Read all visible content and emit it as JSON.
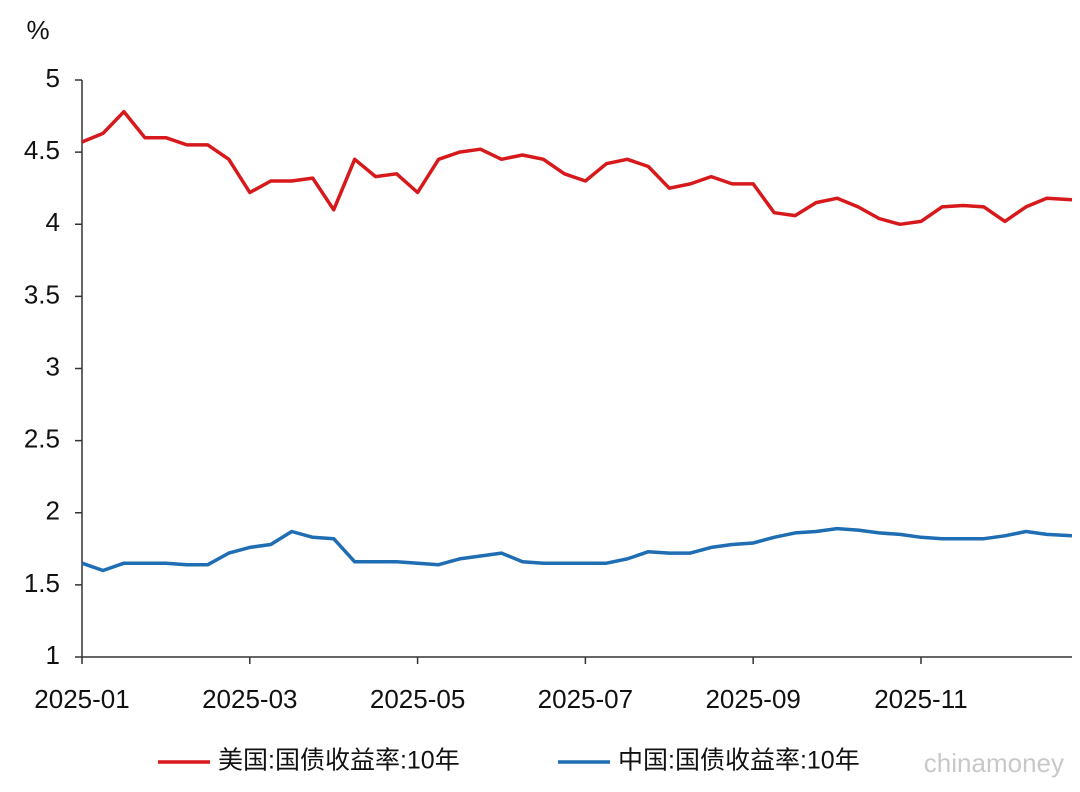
{
  "chart_data": {
    "type": "line",
    "y_label": "%",
    "x": [
      0,
      0.25,
      0.5,
      0.75,
      1,
      1.25,
      1.5,
      1.75,
      2,
      2.25,
      2.5,
      2.75,
      3,
      3.25,
      3.5,
      3.75,
      4,
      4.25,
      4.5,
      4.75,
      5,
      5.25,
      5.5,
      5.75,
      6,
      6.25,
      6.5,
      6.75,
      7,
      7.25,
      7.5,
      7.75,
      8,
      8.25,
      8.5,
      8.75,
      9,
      9.25,
      9.5,
      9.75,
      10,
      10.25,
      10.5,
      10.75,
      11,
      11.25,
      11.5,
      11.8
    ],
    "series": [
      {
        "name": "美国:国债收益率:10年",
        "color": "#d7191c",
        "values": [
          4.57,
          4.63,
          4.78,
          4.6,
          4.6,
          4.55,
          4.55,
          4.45,
          4.22,
          4.3,
          4.3,
          4.32,
          4.1,
          4.45,
          4.33,
          4.35,
          4.22,
          4.45,
          4.5,
          4.52,
          4.45,
          4.48,
          4.45,
          4.35,
          4.3,
          4.42,
          4.45,
          4.4,
          4.25,
          4.28,
          4.33,
          4.28,
          4.28,
          4.08,
          4.06,
          4.15,
          4.18,
          4.12,
          4.04,
          4.0,
          4.02,
          4.12,
          4.13,
          4.12,
          4.02,
          4.12,
          4.18,
          4.17
        ]
      },
      {
        "name": "中国:国债收益率:10年",
        "color": "#1f6db3",
        "values": [
          1.65,
          1.6,
          1.65,
          1.65,
          1.65,
          1.64,
          1.64,
          1.72,
          1.76,
          1.78,
          1.87,
          1.83,
          1.82,
          1.66,
          1.66,
          1.66,
          1.65,
          1.64,
          1.68,
          1.7,
          1.72,
          1.66,
          1.65,
          1.65,
          1.65,
          1.65,
          1.68,
          1.73,
          1.72,
          1.72,
          1.76,
          1.78,
          1.79,
          1.83,
          1.86,
          1.87,
          1.89,
          1.88,
          1.86,
          1.85,
          1.83,
          1.82,
          1.82,
          1.82,
          1.84,
          1.87,
          1.85,
          1.84
        ]
      }
    ],
    "xlim": [
      0,
      11.8
    ],
    "xticks": [
      {
        "value": 0,
        "label": "2025-01"
      },
      {
        "value": 2,
        "label": "2025-03"
      },
      {
        "value": 4,
        "label": "2025-05"
      },
      {
        "value": 6,
        "label": "2025-07"
      },
      {
        "value": 8,
        "label": "2025-09"
      },
      {
        "value": 10,
        "label": "2025-11"
      }
    ],
    "ylim": [
      1,
      5
    ],
    "yticks": [
      1,
      1.5,
      2,
      2.5,
      3,
      3.5,
      4,
      4.5,
      5
    ],
    "grid": false,
    "legend": "bottom",
    "watermark": "chinamoney"
  }
}
